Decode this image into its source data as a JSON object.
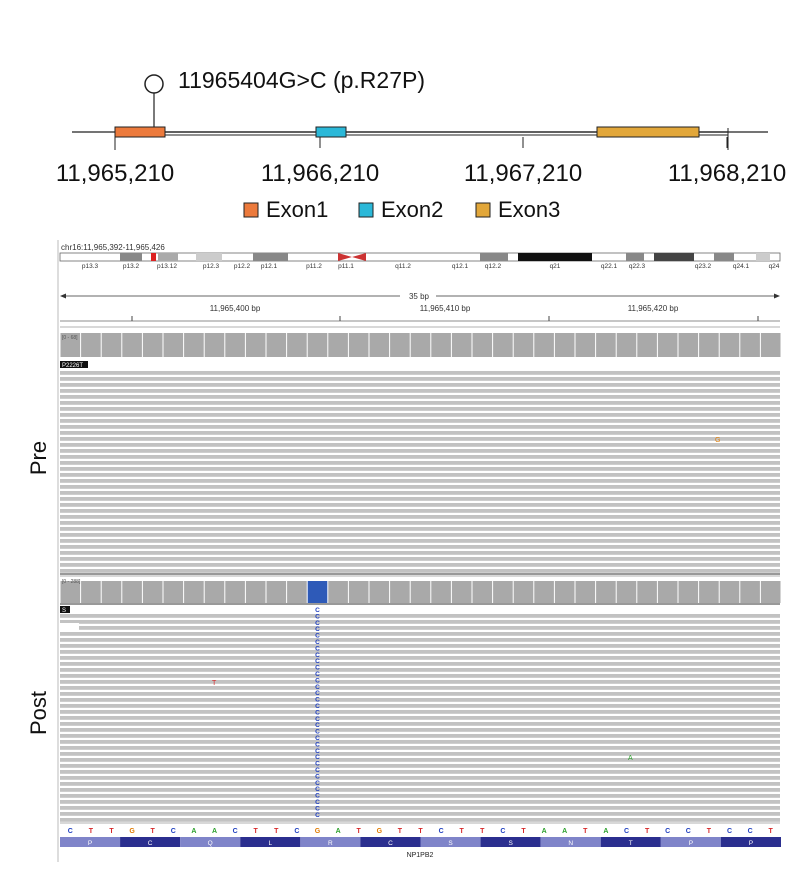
{
  "gene_diagram": {
    "variant_label": "11965404G>C (p.R27P)",
    "coordinates": [
      "11,965,210",
      "11,966,210",
      "11,967,210",
      "11,968,210"
    ],
    "legend": [
      {
        "label": "Exon1",
        "color": "#ec7a3c"
      },
      {
        "label": "Exon2",
        "color": "#2bb8d8"
      },
      {
        "label": "Exon3",
        "color": "#e2a73a"
      }
    ]
  },
  "igv": {
    "locus": "chr16:11,965,392-11,965,426",
    "bands": [
      "p13.3",
      "p13.2",
      "p13.12",
      "p12.3",
      "p12.2",
      "p12.1",
      "p11.2",
      "p11.1",
      "q11.2",
      "q12.1",
      "q12.2",
      "q21",
      "q22.1",
      "q22.3",
      "q23.2",
      "q24.1",
      "q24"
    ],
    "span_label": "35 bp",
    "ruler_labels": [
      "11,965,400 bp",
      "11,965,410 bp",
      "11,965,420 bp"
    ],
    "pre": {
      "side_label": "Pre",
      "coverage_range": "[0 - 68]",
      "sample_tag": "P2226T",
      "mismatch": "G"
    },
    "post": {
      "side_label": "Post",
      "coverage_range": "[0 - 288]",
      "sample_tag": "S",
      "mismatches": [
        "T",
        "A"
      ],
      "variant_base": "C"
    },
    "sequence": [
      "C",
      "T",
      "T",
      "G",
      "T",
      "C",
      "A",
      "A",
      "C",
      "T",
      "T",
      "C",
      "G",
      "A",
      "T",
      "G",
      "T",
      "T",
      "C",
      "T",
      "T",
      "C",
      "T",
      "A",
      "A",
      "T",
      "A",
      "C",
      "T",
      "C",
      "C",
      "T",
      "C",
      "C",
      "T"
    ],
    "amino_acids": [
      "P",
      "C",
      "Q",
      "L",
      "R",
      "C",
      "S",
      "S",
      "N",
      "T",
      "P",
      "P"
    ],
    "gene_name": "NP1PB2",
    "colors": {
      "A": "#2ca02c",
      "C": "#1f3fbf",
      "G": "#e07b00",
      "T": "#d62728"
    }
  }
}
